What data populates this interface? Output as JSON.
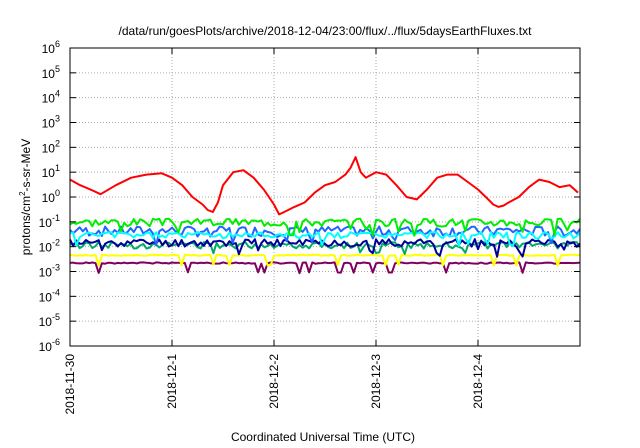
{
  "chart_data": {
    "type": "line",
    "title": "/data/run/goesPlots/archive/2018-12-04/23:00/flux/../flux/5daysEarthFluxes.txt",
    "xlabel": "Coordinated Universal Time (UTC)",
    "ylabel_parts": {
      "a": "protons/cm",
      "sup": "2",
      "b": "-s-sr-MeV"
    },
    "y_scale": "log",
    "ylim_exp": [
      -6,
      6
    ],
    "yticks": [
      {
        "base": "10",
        "exp": "-6"
      },
      {
        "base": "10",
        "exp": "-5"
      },
      {
        "base": "10",
        "exp": "-4"
      },
      {
        "base": "10",
        "exp": "-3"
      },
      {
        "base": "10",
        "exp": "-2"
      },
      {
        "base": "10",
        "exp": "-1"
      },
      {
        "base": "10",
        "exp": "0"
      },
      {
        "base": "10",
        "exp": "1"
      },
      {
        "base": "10",
        "exp": "2"
      },
      {
        "base": "10",
        "exp": "3"
      },
      {
        "base": "10",
        "exp": "4"
      },
      {
        "base": "10",
        "exp": "5"
      },
      {
        "base": "10",
        "exp": "6"
      }
    ],
    "xlim": [
      "2018-11-30",
      "2018-12-05"
    ],
    "xticks": [
      "2018-11-30",
      "2018-12-1",
      "2018-12-2",
      "2018-12-3",
      "2018-12-4"
    ],
    "grid": true,
    "series": [
      {
        "color": "#ff0000",
        "x_days": [
          0,
          0.1,
          0.2,
          0.3,
          0.45,
          0.6,
          0.75,
          0.9,
          1.0,
          1.1,
          1.2,
          1.3,
          1.35,
          1.4,
          1.45,
          1.5,
          1.6,
          1.7,
          1.8,
          1.9,
          2.0,
          2.05,
          2.1,
          2.2,
          2.3,
          2.4,
          2.5,
          2.6,
          2.7,
          2.75,
          2.8,
          2.85,
          2.9,
          3.0,
          3.1,
          3.2,
          3.3,
          3.4,
          3.5,
          3.6,
          3.7,
          3.8,
          3.9,
          4.0,
          4.1,
          4.15,
          4.2,
          4.25,
          4.3,
          4.4,
          4.5,
          4.6,
          4.7,
          4.8,
          4.9,
          4.98
        ],
        "values": [
          5,
          3,
          2,
          1.3,
          3,
          6,
          8,
          9,
          6,
          3,
          1,
          0.5,
          0.3,
          0.25,
          0.6,
          3,
          10,
          12,
          6,
          2,
          0.5,
          0.2,
          0.25,
          0.4,
          0.6,
          1.5,
          3,
          4,
          8,
          15,
          40,
          10,
          6,
          10,
          8,
          3,
          1,
          0.8,
          2,
          6,
          8,
          8,
          4,
          2,
          0.8,
          0.5,
          0.4,
          0.45,
          0.6,
          1,
          2.5,
          5,
          4,
          2.5,
          3,
          1.5
        ]
      },
      {
        "color": "#00ee00",
        "base": 0.1,
        "jitter": 0.35,
        "seed": 3
      },
      {
        "color": "#00ffff",
        "base": 0.03,
        "jitter": 0.3,
        "seed": 5
      },
      {
        "color": "#2266ff",
        "base": 0.045,
        "jitter": 0.45,
        "seed": 7
      },
      {
        "color": "#000099",
        "base": 0.015,
        "jitter": 0.35,
        "seed": 11
      },
      {
        "color": "#00aa66",
        "base": 0.012,
        "jitter": 0.3,
        "seed": 13
      },
      {
        "color": "#ffff00",
        "base": 0.0045,
        "jitter": 0.05,
        "seed": 17
      },
      {
        "color": "#800060",
        "base": 0.0022,
        "jitter": 0.06,
        "seed": 19
      }
    ]
  }
}
